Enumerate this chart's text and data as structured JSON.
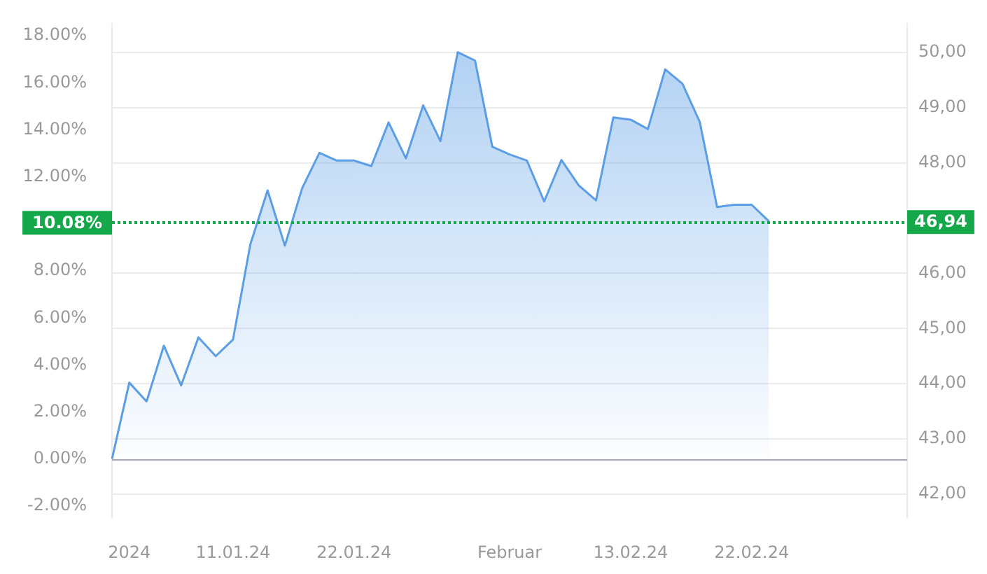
{
  "chart_data": {
    "type": "area",
    "categories": [
      null,
      "2024",
      null,
      null,
      null,
      null,
      null,
      "11.01.24",
      null,
      null,
      null,
      null,
      null,
      null,
      "22.01.24",
      null,
      null,
      null,
      null,
      null,
      null,
      null,
      null,
      "Februar",
      null,
      null,
      null,
      null,
      null,
      null,
      "13.02.24",
      null,
      null,
      null,
      null,
      null,
      null,
      "22.02.24",
      null,
      null,
      null,
      null,
      null,
      null,
      null,
      null,
      null
    ],
    "series": [
      {
        "color": "#5b9ee6",
        "axis": "y2",
        "values": [
          42.64,
          44.02,
          43.68,
          44.69,
          43.97,
          44.84,
          44.5,
          44.8,
          46.52,
          47.5,
          46.5,
          47.54,
          48.18,
          48.04,
          48.04,
          47.94,
          48.73,
          48.08,
          49.04,
          48.39,
          50.0,
          49.85,
          48.29,
          48.15,
          48.04,
          47.3,
          48.05,
          47.59,
          47.32,
          48.82,
          48.78,
          48.61,
          49.69,
          49.43,
          48.74,
          47.2,
          47.24,
          47.24,
          46.94,
          null,
          null,
          null,
          null,
          null,
          null,
          null,
          null
        ]
      }
    ],
    "ylim": [
      -2.5,
      18.5
    ],
    "yticks": [
      {
        "value": -2,
        "label": "-2.00%"
      },
      {
        "value": 0,
        "label": "0.00%"
      },
      {
        "value": 2,
        "label": "2.00%"
      },
      {
        "value": 4,
        "label": "4.00%"
      },
      {
        "value": 6,
        "label": "6.00%"
      },
      {
        "value": 8,
        "label": "8.00%"
      },
      {
        "value": 12,
        "label": "12.00%"
      },
      {
        "value": 14,
        "label": "14.00%"
      },
      {
        "value": 16,
        "label": "16.00%"
      },
      {
        "value": 18,
        "label": "18.00%"
      }
    ],
    "y2lim": [
      41.57,
      50.51
    ],
    "y2ticks": [
      {
        "value": 42,
        "label": "42,00"
      },
      {
        "value": 43,
        "label": "43,00"
      },
      {
        "value": 44,
        "label": "44,00"
      },
      {
        "value": 45,
        "label": "45,00"
      },
      {
        "value": 46,
        "label": "46,00"
      },
      {
        "value": 48,
        "label": "48,00"
      },
      {
        "value": 49,
        "label": "49,00"
      },
      {
        "value": 50,
        "label": "50,00"
      }
    ],
    "ref_lines": [
      {
        "axis": "y",
        "value": 0,
        "color": "#a8a8b0",
        "line_style": "solid"
      },
      {
        "axis": "y",
        "value": 10.08,
        "label": "10.08%",
        "color": "#14a84a",
        "line_style": "dotted"
      },
      {
        "axis": "y2",
        "value": 46.94,
        "label": "46,94",
        "color": "#14a84a",
        "line_style": "dotted"
      }
    ],
    "grid": "y",
    "legend": false,
    "marker": "none"
  }
}
